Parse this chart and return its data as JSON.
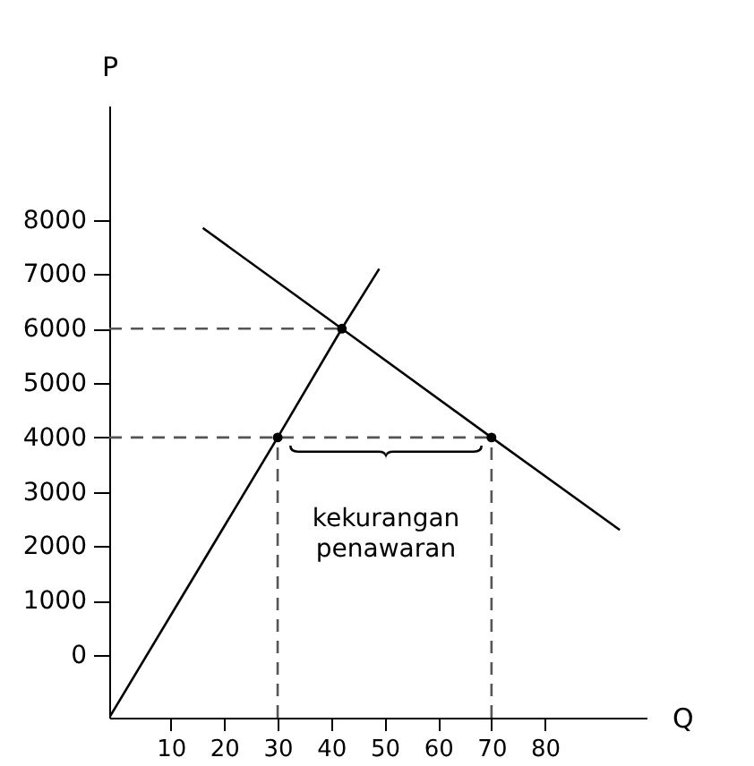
{
  "chart_data": {
    "type": "line",
    "xlabel": "Q",
    "ylabel": "P",
    "xlim": [
      -1.5,
      99
    ],
    "ylim": [
      -1150,
      10100
    ],
    "xticks": [
      10,
      20,
      30,
      40,
      50,
      60,
      70,
      80
    ],
    "yticks": [
      0,
      1000,
      2000,
      3000,
      4000,
      5000,
      6000,
      7000,
      8000
    ],
    "grid": false,
    "series": [
      {
        "type": "line",
        "color": "#000000",
        "x": [
          -1.5,
          30,
          42,
          49
        ],
        "values": [
          -1150,
          4000,
          6000,
          7100
        ]
      },
      {
        "type": "line",
        "color": "#000000",
        "x": [
          16,
          42,
          70,
          94
        ],
        "values": [
          7850,
          6000,
          4000,
          2300
        ]
      },
      {
        "type": "line",
        "line_style": "dashed",
        "color": "#555555",
        "x": [
          -1.5,
          42
        ],
        "values": [
          6000,
          6000
        ]
      },
      {
        "type": "line",
        "line_style": "dashed",
        "color": "#555555",
        "x": [
          -1.5,
          70
        ],
        "values": [
          4000,
          4000
        ]
      },
      {
        "type": "line",
        "line_style": "dashed",
        "color": "#555555",
        "x": [
          30,
          30
        ],
        "values": [
          -1150,
          4000
        ]
      },
      {
        "type": "line",
        "line_style": "dashed",
        "color": "#555555",
        "x": [
          70,
          70
        ],
        "values": [
          -1150,
          4000
        ]
      },
      {
        "type": "scatter",
        "marker": "circle",
        "color": "#000000",
        "x": [
          30,
          42,
          70
        ],
        "values": [
          4000,
          6000,
          4000
        ]
      }
    ],
    "annotations": [
      "kekurangan penawaran"
    ]
  }
}
